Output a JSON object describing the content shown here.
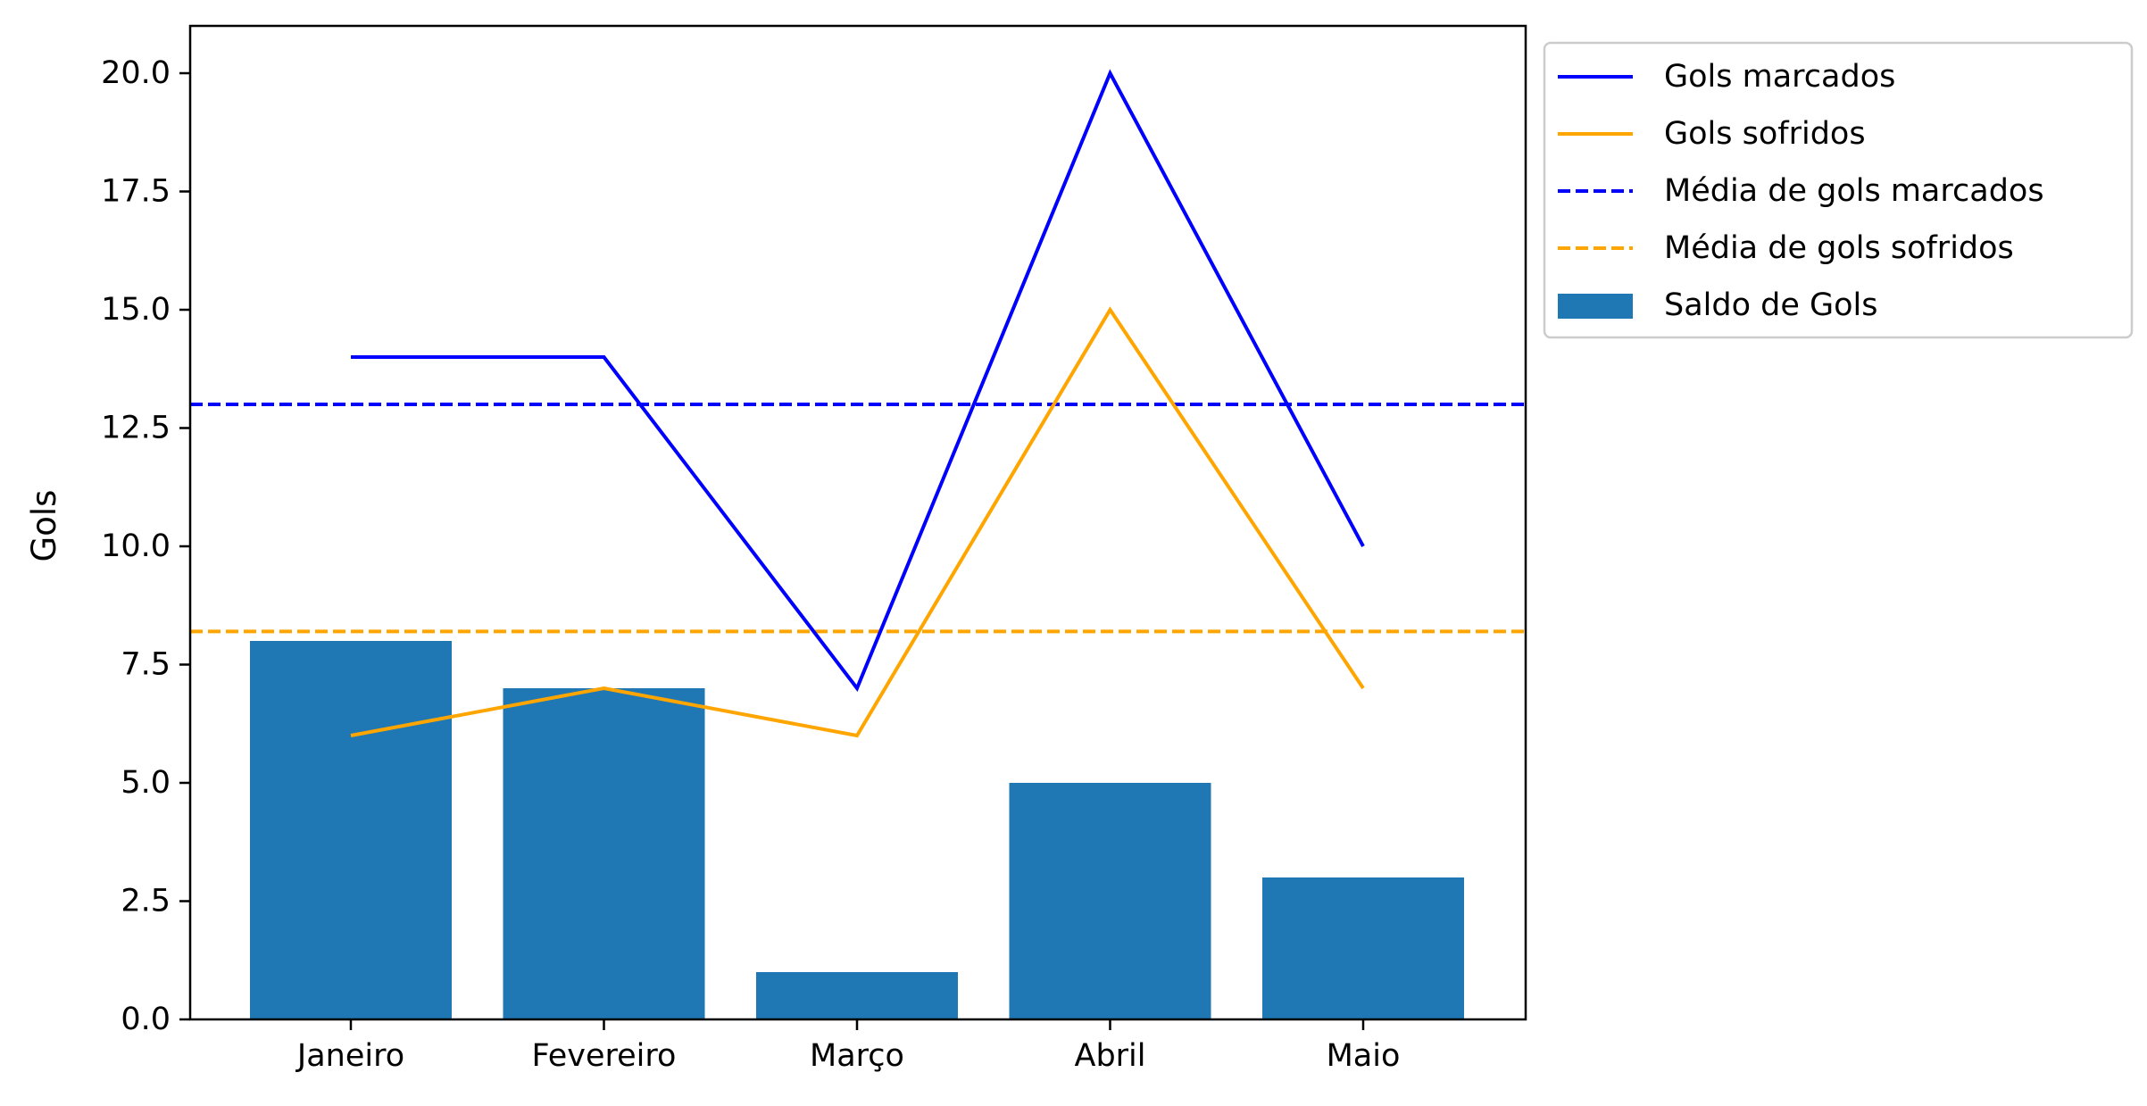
{
  "chart_data": {
    "type": "bar",
    "categories": [
      "Janeiro",
      "Fevereiro",
      "Março",
      "Abril",
      "Maio"
    ],
    "ylabel": "Gols",
    "xlabel": "",
    "title": "",
    "ylim": [
      0,
      21
    ],
    "yticks": [
      "0.0",
      "2.5",
      "5.0",
      "7.5",
      "10.0",
      "12.5",
      "15.0",
      "17.5",
      "20.0"
    ],
    "grid": false,
    "legend_position": "outside-top-right",
    "series": [
      {
        "name": "Gols marcados",
        "kind": "line",
        "style": "solid",
        "color": "#0000ff",
        "values": [
          14,
          14,
          7,
          20,
          10
        ]
      },
      {
        "name": "Gols sofridos",
        "kind": "line",
        "style": "solid",
        "color": "#ffa500",
        "values": [
          6,
          7,
          6,
          15,
          7
        ]
      },
      {
        "name": "Média de gols marcados",
        "kind": "hline",
        "style": "dashed",
        "color": "#0000ff",
        "value": 13
      },
      {
        "name": "Média de gols sofridos",
        "kind": "hline",
        "style": "dashed",
        "color": "#ffa500",
        "value": 8.2
      },
      {
        "name": "Saldo de Gols",
        "kind": "bar",
        "color": "#1f77b4",
        "values": [
          8,
          7,
          1,
          5,
          3
        ]
      }
    ]
  }
}
